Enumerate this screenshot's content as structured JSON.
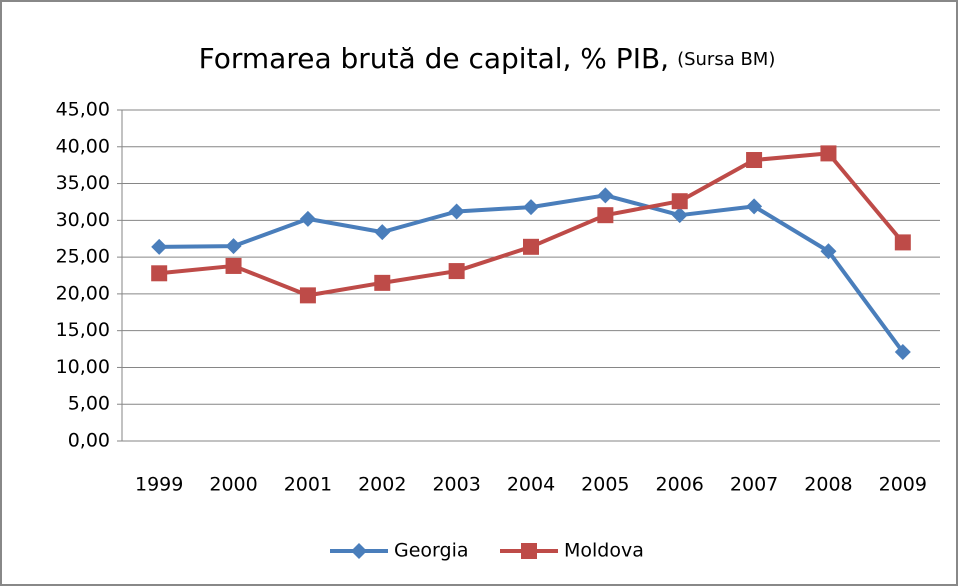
{
  "chart_data": {
    "type": "line",
    "title": "Formarea brută de capital, % PIB,",
    "subtitle": "(Sursa BM)",
    "categories": [
      "1999",
      "2000",
      "2001",
      "2002",
      "2003",
      "2004",
      "2005",
      "2006",
      "2007",
      "2008",
      "2009"
    ],
    "series": [
      {
        "name": "Georgia",
        "color": "#4a7ebb",
        "marker": "diamond",
        "values": [
          26.4,
          26.5,
          30.2,
          28.4,
          31.2,
          31.8,
          33.4,
          30.7,
          31.9,
          25.8,
          12.1
        ]
      },
      {
        "name": "Moldova",
        "color": "#be4b48",
        "marker": "square",
        "values": [
          22.8,
          23.8,
          19.8,
          21.5,
          23.1,
          26.4,
          30.7,
          32.6,
          38.2,
          39.1,
          27.0
        ]
      }
    ],
    "ylim": [
      0,
      45
    ],
    "yticks": [
      {
        "value": 0,
        "label": "0,00"
      },
      {
        "value": 5,
        "label": "5,00"
      },
      {
        "value": 10,
        "label": "10,00"
      },
      {
        "value": 15,
        "label": "15,00"
      },
      {
        "value": 20,
        "label": "20,00"
      },
      {
        "value": 25,
        "label": "25,00"
      },
      {
        "value": 30,
        "label": "30,00"
      },
      {
        "value": 35,
        "label": "35,00"
      },
      {
        "value": 40,
        "label": "40,00"
      },
      {
        "value": 45,
        "label": "45,00"
      }
    ],
    "grid": true,
    "legend": "bottom"
  }
}
